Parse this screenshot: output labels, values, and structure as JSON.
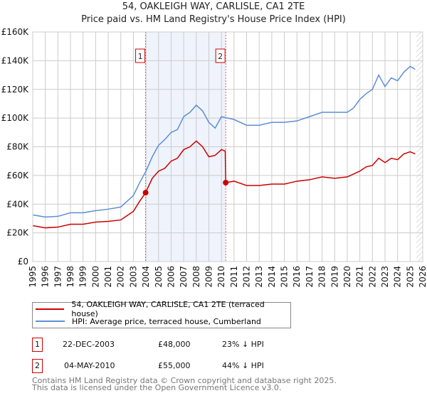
{
  "chart_data": {
    "type": "line",
    "title": "54, OAKLEIGH WAY, CARLISLE, CA1 2TE",
    "subtitle": "Price paid vs. HM Land Registry's House Price Index (HPI)",
    "xlim": [
      1995,
      2026
    ],
    "ylim": [
      0,
      160000
    ],
    "yticks": [
      0,
      20000,
      40000,
      60000,
      80000,
      100000,
      120000,
      140000,
      160000
    ],
    "ytick_labels": [
      "£0",
      "£20K",
      "£40K",
      "£60K",
      "£80K",
      "£100K",
      "£120K",
      "£140K",
      "£160K"
    ],
    "xticks": [
      1995,
      1996,
      1997,
      1998,
      1999,
      2000,
      2001,
      2002,
      2003,
      2004,
      2005,
      2006,
      2007,
      2008,
      2009,
      2010,
      2011,
      2012,
      2013,
      2014,
      2015,
      2016,
      2017,
      2018,
      2019,
      2020,
      2021,
      2022,
      2023,
      2024,
      2025,
      2026
    ],
    "grid": true,
    "shaded_range": [
      2003.97,
      2010.34
    ],
    "forecast_from": 2025.5,
    "series": [
      {
        "name": "54, OAKLEIGH WAY, CARLISLE, CA1 2TE (terraced house)",
        "color": "#cc0000",
        "x": [
          1995,
          1996,
          1997,
          1998,
          1999,
          2000,
          2001,
          2002,
          2002.5,
          2003,
          2003.5,
          2003.97,
          2004.5,
          2005,
          2005.5,
          2006,
          2006.5,
          2007,
          2007.5,
          2008,
          2008.5,
          2009,
          2009.5,
          2010,
          2010.3,
          2010.34,
          2011,
          2012,
          2013,
          2014,
          2015,
          2016,
          2017,
          2018,
          2019,
          2020,
          2021,
          2021.5,
          2022,
          2022.5,
          2023,
          2023.5,
          2024,
          2024.5,
          2025,
          2025.4
        ],
        "y": [
          25000,
          23500,
          24000,
          26000,
          26000,
          27500,
          28000,
          29000,
          32000,
          35000,
          42000,
          48000,
          58000,
          63000,
          65000,
          70000,
          72000,
          78000,
          80000,
          84000,
          80000,
          73000,
          74000,
          78000,
          77000,
          55000,
          56000,
          53000,
          53000,
          54000,
          54000,
          56000,
          57000,
          59000,
          58000,
          59000,
          63000,
          66000,
          67000,
          72000,
          69000,
          72000,
          71000,
          75000,
          76500,
          75000
        ]
      },
      {
        "name": "HPI: Average price, terraced house, Cumberland",
        "color": "#5b8fd4",
        "x": [
          1995,
          1996,
          1997,
          1998,
          1999,
          2000,
          2001,
          2002,
          2002.5,
          2003,
          2003.5,
          2004,
          2004.5,
          2005,
          2005.5,
          2006,
          2006.5,
          2007,
          2007.5,
          2008,
          2008.5,
          2009,
          2009.5,
          2010,
          2010.5,
          2011,
          2012,
          2013,
          2014,
          2015,
          2016,
          2017,
          2018,
          2019,
          2020,
          2020.5,
          2021,
          2021.5,
          2022,
          2022.5,
          2023,
          2023.5,
          2024,
          2024.5,
          2025,
          2025.4
        ],
        "y": [
          32500,
          31000,
          31500,
          34000,
          34000,
          35500,
          36500,
          38000,
          42000,
          46000,
          55000,
          63000,
          73000,
          81000,
          85000,
          90000,
          92000,
          101000,
          104000,
          109000,
          105000,
          97000,
          93000,
          101000,
          100000,
          99000,
          95000,
          95000,
          97000,
          97000,
          98000,
          101000,
          104000,
          104000,
          104000,
          107000,
          113000,
          117000,
          120000,
          130000,
          122000,
          128000,
          126000,
          132000,
          136000,
          134000
        ]
      }
    ],
    "markers": [
      {
        "label": "1",
        "x": 2003.97,
        "y": 48000
      },
      {
        "label": "2",
        "x": 2010.34,
        "y": 55000
      }
    ]
  },
  "legend": {
    "items": [
      "54, OAKLEIGH WAY, CARLISLE, CA1 2TE (terraced house)",
      "HPI: Average price, terraced house, Cumberland"
    ]
  },
  "transactions": [
    {
      "id": "1",
      "date": "22-DEC-2003",
      "price": "£48,000",
      "hpi": "23% ↓ HPI"
    },
    {
      "id": "2",
      "date": "04-MAY-2010",
      "price": "£55,000",
      "hpi": "44% ↓ HPI"
    }
  ],
  "footer": {
    "line1": "Contains HM Land Registry data © Crown copyright and database right 2025.",
    "line2": "This data is licensed under the Open Government Licence v3.0."
  }
}
